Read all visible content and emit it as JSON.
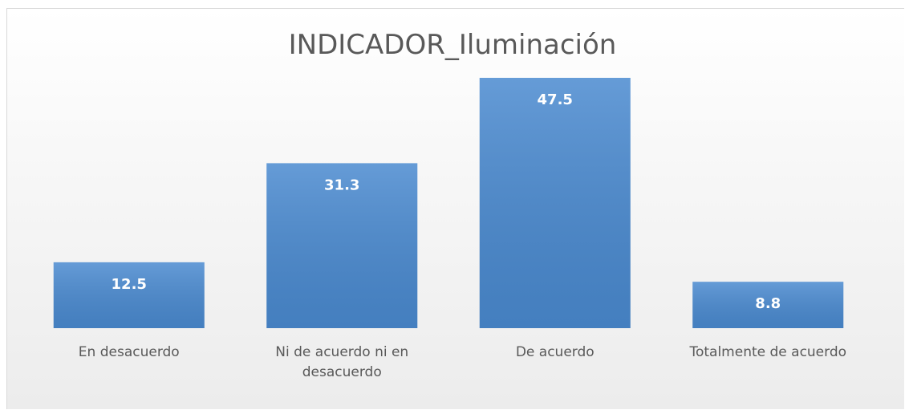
{
  "chart_data": {
    "type": "bar",
    "title": "INDICADOR_Iluminación",
    "categories": [
      "En desacuerdo",
      "Ni de acuerdo ni en desacuerdo",
      "De acuerdo",
      "Totalmente de acuerdo"
    ],
    "values": [
      12.5,
      31.3,
      47.5,
      8.8
    ],
    "color": "#4a8ad0"
  }
}
